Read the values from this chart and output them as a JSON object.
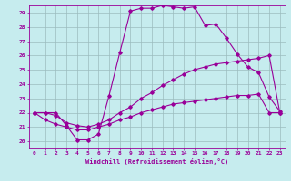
{
  "xlabel": "Windchill (Refroidissement éolien,°C)",
  "xlim": [
    -0.5,
    23.5
  ],
  "ylim": [
    19.5,
    29.5
  ],
  "yticks": [
    20,
    21,
    22,
    23,
    24,
    25,
    26,
    27,
    28,
    29
  ],
  "xticks": [
    0,
    1,
    2,
    3,
    4,
    5,
    6,
    7,
    8,
    9,
    10,
    11,
    12,
    13,
    14,
    15,
    16,
    17,
    18,
    19,
    20,
    21,
    22,
    23
  ],
  "background_color": "#c6ecee",
  "grid_color": "#9bbcbe",
  "line_color": "#990099",
  "hours": [
    0,
    1,
    2,
    3,
    4,
    5,
    6,
    7,
    8,
    9,
    10,
    11,
    12,
    13,
    14,
    15,
    16,
    17,
    18,
    19,
    20,
    21,
    22,
    23
  ],
  "curve_max": [
    22.0,
    22.0,
    22.0,
    21.1,
    20.1,
    20.1,
    20.5,
    23.2,
    26.2,
    29.1,
    29.3,
    29.3,
    29.5,
    29.4,
    29.3,
    29.4,
    28.1,
    28.2,
    27.2,
    26.1,
    25.2,
    24.8,
    23.1,
    22.1
  ],
  "curve_mid": [
    22.0,
    22.0,
    21.8,
    21.3,
    21.1,
    21.0,
    21.2,
    21.5,
    22.0,
    22.4,
    23.0,
    23.4,
    23.9,
    24.3,
    24.7,
    25.0,
    25.2,
    25.4,
    25.5,
    25.6,
    25.7,
    25.8,
    26.0,
    22.0
  ],
  "curve_min": [
    22.0,
    21.5,
    21.2,
    21.0,
    20.8,
    20.8,
    21.0,
    21.2,
    21.5,
    21.7,
    22.0,
    22.2,
    22.4,
    22.6,
    22.7,
    22.8,
    22.9,
    23.0,
    23.1,
    23.2,
    23.2,
    23.3,
    22.0,
    22.0
  ]
}
